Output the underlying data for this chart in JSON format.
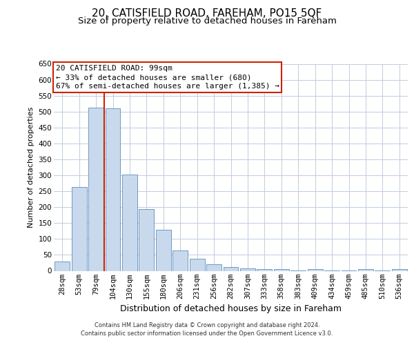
{
  "title": "20, CATISFIELD ROAD, FAREHAM, PO15 5QF",
  "subtitle": "Size of property relative to detached houses in Fareham",
  "xlabel": "Distribution of detached houses by size in Fareham",
  "ylabel": "Number of detached properties",
  "categories": [
    "28sqm",
    "53sqm",
    "79sqm",
    "104sqm",
    "130sqm",
    "155sqm",
    "180sqm",
    "206sqm",
    "231sqm",
    "256sqm",
    "282sqm",
    "307sqm",
    "333sqm",
    "358sqm",
    "383sqm",
    "409sqm",
    "434sqm",
    "459sqm",
    "485sqm",
    "510sqm",
    "536sqm"
  ],
  "values": [
    30,
    263,
    513,
    510,
    303,
    193,
    128,
    63,
    37,
    21,
    13,
    8,
    5,
    5,
    1,
    5,
    1,
    1,
    5,
    1,
    5
  ],
  "bar_color": "#c9d9ed",
  "bar_edge_color": "#5b8db8",
  "grid_color": "#c0cce0",
  "background_color": "#ffffff",
  "annotation_line1": "20 CATISFIELD ROAD: 99sqm",
  "annotation_line2": "← 33% of detached houses are smaller (680)",
  "annotation_line3": "67% of semi-detached houses are larger (1,385) →",
  "vline_color": "#cc2200",
  "vline_pos": 2.5,
  "ylim_max": 650,
  "yticks": [
    0,
    50,
    100,
    150,
    200,
    250,
    300,
    350,
    400,
    450,
    500,
    550,
    600,
    650
  ],
  "footer_line1": "Contains HM Land Registry data © Crown copyright and database right 2024.",
  "footer_line2": "Contains public sector information licensed under the Open Government Licence v3.0.",
  "title_fontsize": 11,
  "subtitle_fontsize": 9.5,
  "xlabel_fontsize": 9,
  "ylabel_fontsize": 8,
  "tick_fontsize": 7.5,
  "annotation_fontsize": 8,
  "footer_fontsize": 6
}
